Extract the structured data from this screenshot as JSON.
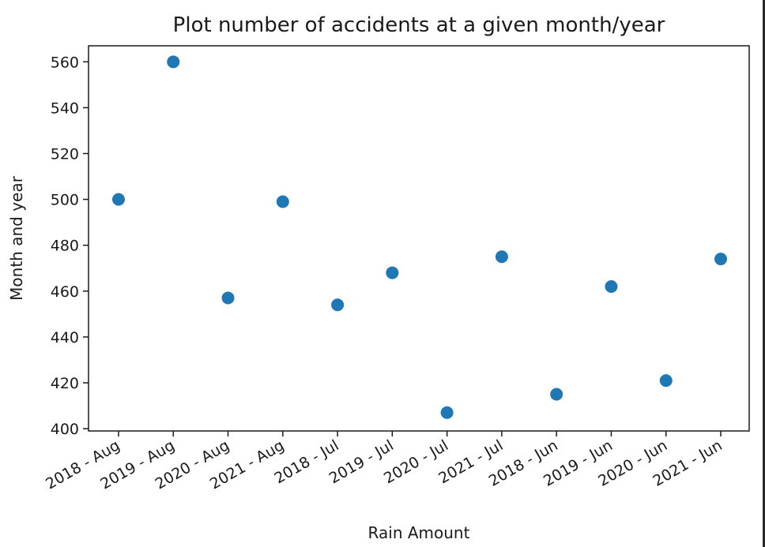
{
  "chart_data": {
    "type": "scatter",
    "title": "Plot number of accidents at a given month/year",
    "xlabel": "Rain Amount",
    "ylabel": "Month and year",
    "categories": [
      "2018 - Aug",
      "2019 - Aug",
      "2020 - Aug",
      "2021 - Aug",
      "2018 - Jul",
      "2019 - Jul",
      "2020 - Jul",
      "2021 - Jul",
      "2018 - Jun",
      "2019 - Jun",
      "2020 - Jun",
      "2021 - Jun"
    ],
    "values": [
      500,
      560,
      457,
      499,
      454,
      468,
      407,
      475,
      415,
      462,
      421,
      474
    ],
    "ylim": [
      399,
      567
    ],
    "yticks": [
      400,
      420,
      440,
      460,
      480,
      500,
      520,
      540,
      560
    ],
    "grid": false,
    "marker_color": "#1f77b4"
  }
}
